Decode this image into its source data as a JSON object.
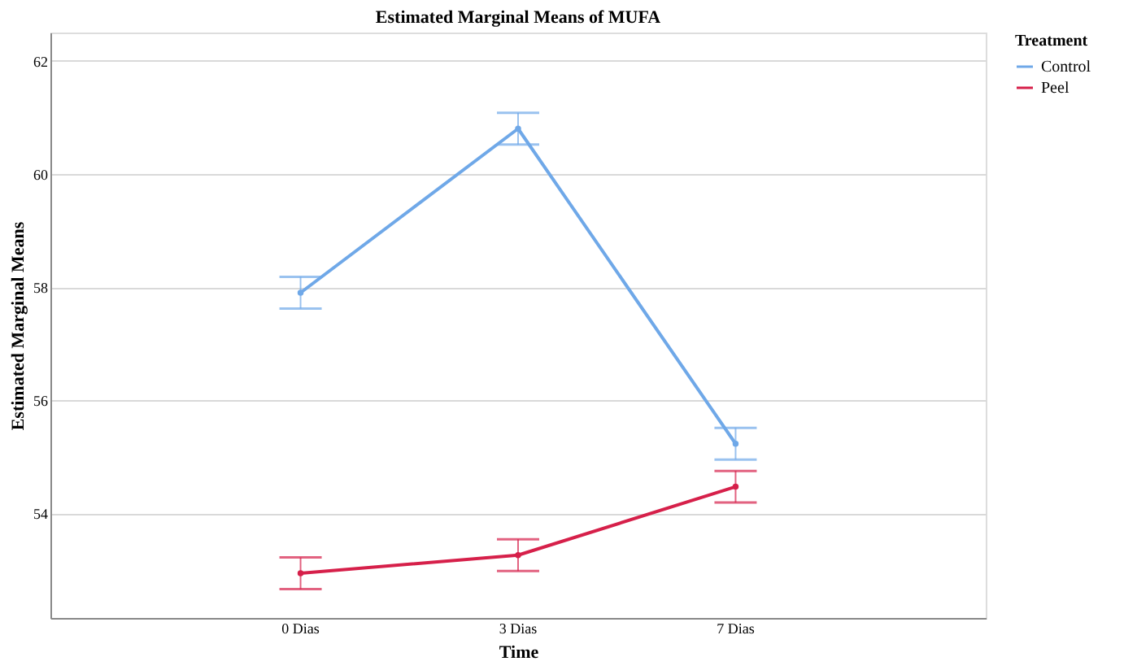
{
  "chart_data": {
    "type": "line",
    "title": "Estimated Marginal Means of MUFA",
    "xlabel": "Time",
    "ylabel": "Estimated Marginal Means",
    "legend_title": "Treatment",
    "categories": [
      "0 Dias",
      "3 Dias",
      "7 Dias"
    ],
    "series": [
      {
        "name": "Control",
        "color": "#6fa8e8",
        "values": [
          57.9,
          60.8,
          55.23
        ],
        "errors": [
          0.28,
          0.28,
          0.28
        ]
      },
      {
        "name": "Peel",
        "color": "#d6204a",
        "values": [
          52.94,
          53.26,
          54.47
        ],
        "errors": [
          0.28,
          0.28,
          0.28
        ]
      }
    ],
    "ylim": [
      52.15,
      62.5
    ],
    "yticks": [
      54,
      56,
      58,
      60,
      62
    ],
    "grid": "y",
    "legend": "top right",
    "marker": "circle",
    "line_style": "solid"
  }
}
